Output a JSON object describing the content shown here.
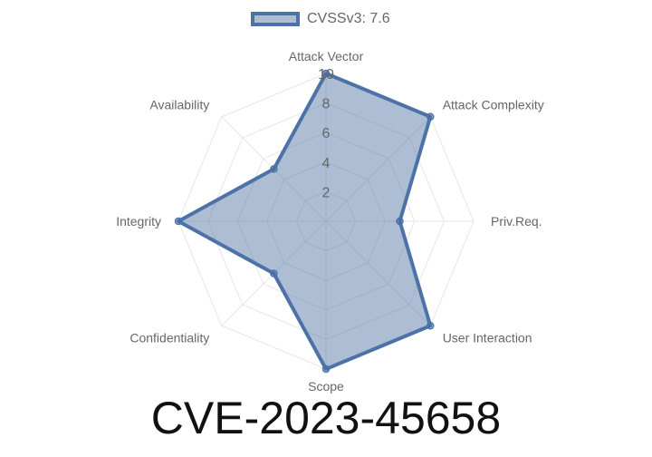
{
  "legend": {
    "label": "CVSSv3: 7.6"
  },
  "chart_data": {
    "type": "radar",
    "labels": [
      "Attack Vector",
      "Attack Complexity",
      "Priv.Req.",
      "User Interaction",
      "Scope",
      "Confidentiality",
      "Integrity",
      "Availability"
    ],
    "series": [
      {
        "name": "CVSSv3: 7.6",
        "values": [
          10,
          10,
          5,
          10,
          10,
          5,
          10,
          5
        ]
      }
    ],
    "rlim": [
      0,
      10
    ],
    "ticks": [
      "2",
      "4",
      "6",
      "8",
      "10"
    ],
    "grid": true,
    "legend_position": "top",
    "colors": {
      "line": "#4c72a7",
      "fill": "rgba(74,110,160,0.45)",
      "grid": "#e6e6e6"
    }
  },
  "title": "CVE-2023-45658"
}
